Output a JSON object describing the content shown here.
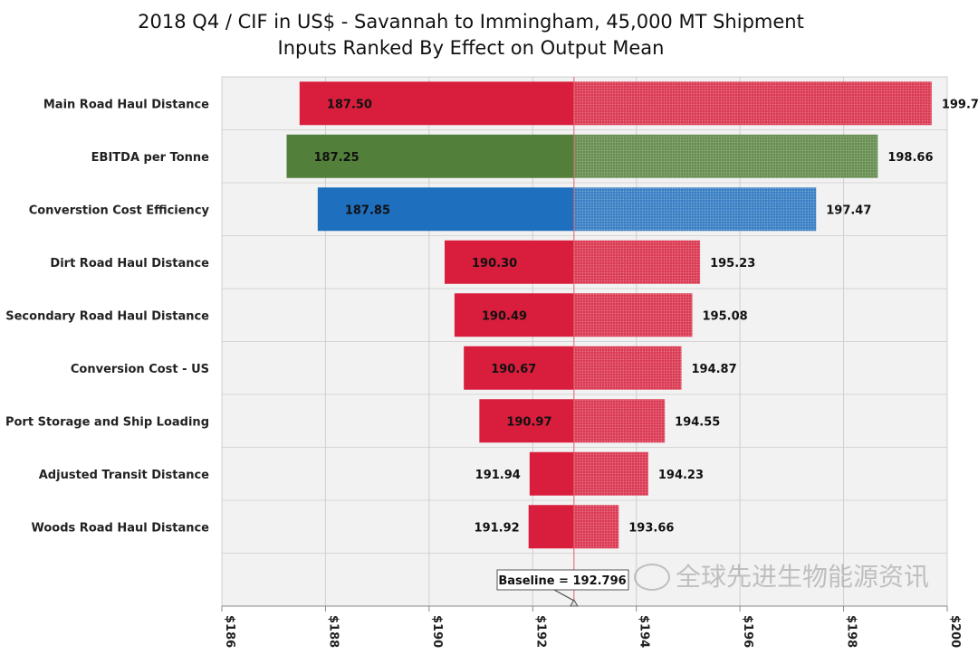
{
  "chart_data": {
    "type": "tornado",
    "title": "2018 Q4 / CIF in US$ - Savannah to Immingham, 45,000 MT Shipment",
    "subtitle": "Inputs Ranked By Effect on Output Mean",
    "baseline": 192.796,
    "baseline_label": "Baseline = 192.796",
    "xlim": [
      186,
      200
    ],
    "x_ticks": [
      "$186",
      "$188",
      "$190",
      "$192",
      "$194",
      "$196",
      "$198",
      "$200"
    ],
    "x_tick_values": [
      186,
      188,
      190,
      192,
      194,
      196,
      198,
      200
    ],
    "grid": true,
    "categories": [
      "Main Road Haul Distance",
      "EBITDA per Tonne",
      "Converstion Cost Efficiency",
      "Dirt Road Haul Distance",
      "Secondary Road Haul Distance",
      "Conversion Cost - US",
      "Port Storage and Ship Loading",
      "Adjusted Transit Distance",
      "Woods Road Haul Distance"
    ],
    "low_values": [
      187.5,
      187.25,
      187.85,
      190.3,
      190.49,
      190.67,
      190.97,
      191.94,
      191.92
    ],
    "high_values": [
      199.7,
      198.66,
      197.47,
      195.23,
      195.08,
      194.87,
      194.55,
      194.23,
      193.66
    ],
    "low_labels": [
      "187.50",
      "187.25",
      "187.85",
      "190.30",
      "190.49",
      "190.67",
      "190.97",
      "191.94",
      "191.92"
    ],
    "high_labels": [
      "199.70",
      "198.66",
      "197.47",
      "195.23",
      "195.08",
      "194.87",
      "194.55",
      "194.23",
      "193.66"
    ],
    "bar_colors": [
      "#d81e3c",
      "#527f3a",
      "#1e6fbe",
      "#d81e3c",
      "#d81e3c",
      "#d81e3c",
      "#d81e3c",
      "#d81e3c",
      "#d81e3c"
    ]
  },
  "watermark": "全球先进生物能源资讯"
}
